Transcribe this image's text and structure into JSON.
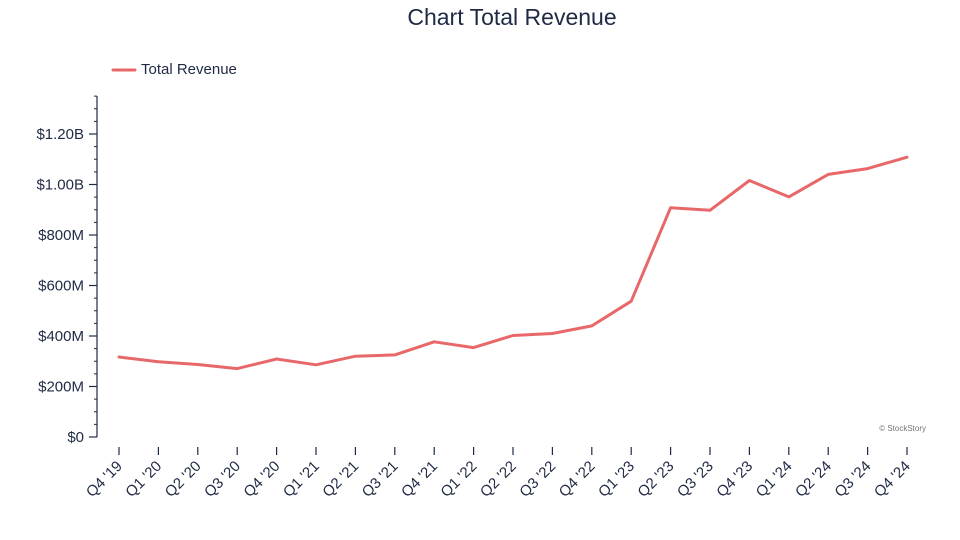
{
  "chart_data": {
    "type": "line",
    "title": "Chart Total Revenue",
    "categories": [
      "Q4 '19",
      "Q1 '20",
      "Q2 '20",
      "Q3 '20",
      "Q4 '20",
      "Q1 '21",
      "Q2 '21",
      "Q3 '21",
      "Q4 '21",
      "Q1 '22",
      "Q2 '22",
      "Q3 '22",
      "Q4 '22",
      "Q1 '23",
      "Q2 '23",
      "Q3 '23",
      "Q4 '23",
      "Q1 '24",
      "Q2 '24",
      "Q3 '24",
      "Q4 '24"
    ],
    "series": [
      {
        "name": "Total Revenue",
        "color": "#e8686a",
        "values": [
          317,
          298,
          287,
          271,
          309,
          286,
          320,
          325,
          377,
          354,
          402,
          410,
          440,
          538,
          908,
          898,
          1016,
          951,
          1040,
          1063,
          1108
        ]
      }
    ],
    "ylim": [
      0,
      1350
    ],
    "y_ticks": [
      {
        "value": 0,
        "label": "$0"
      },
      {
        "value": 200,
        "label": "$200M"
      },
      {
        "value": 400,
        "label": "$400M"
      },
      {
        "value": 600,
        "label": "$600M"
      },
      {
        "value": 800,
        "label": "$800M"
      },
      {
        "value": 1000,
        "label": "$1.00B"
      },
      {
        "value": 1200,
        "label": "$1.20B"
      }
    ],
    "y_unit": "millions USD",
    "grid": false,
    "legend_position": "top-left",
    "watermark": "© StockStory"
  }
}
